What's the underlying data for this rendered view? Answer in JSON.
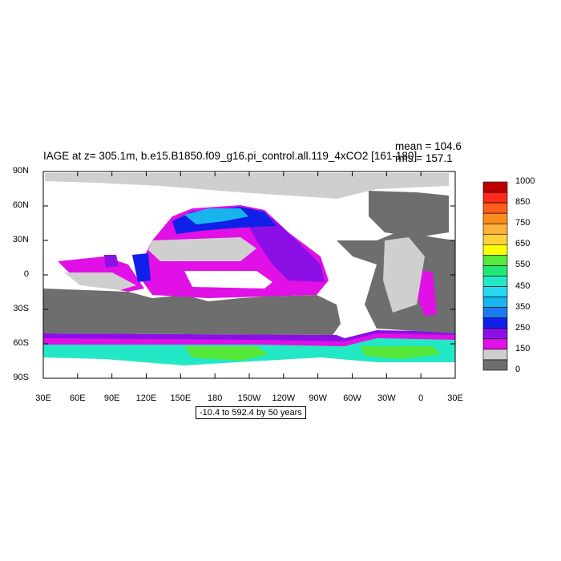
{
  "header": {
    "title": "IAGE at z= 305.1m, b.e15.B1850.f09_g16.pi_control.all.119_4xCO2 [161-180]",
    "mean": "mean = 104.6",
    "rms": "rms = 157.1"
  },
  "axes": {
    "lat_labels": [
      "90N",
      "60N",
      "30N",
      "0",
      "30S",
      "60S",
      "90S"
    ],
    "lon_labels": [
      "30E",
      "60E",
      "90E",
      "120E",
      "150E",
      "180",
      "150W",
      "120W",
      "90W",
      "60W",
      "30W",
      "0",
      "30E"
    ]
  },
  "colorbar": {
    "labels": [
      "1000",
      "850",
      "750",
      "650",
      "550",
      "450",
      "350",
      "250",
      "150",
      "0"
    ],
    "colors": [
      "#c00000",
      "#ff2a1a",
      "#ff5e1a",
      "#ff8c1e",
      "#ffb13a",
      "#ffd23a",
      "#ffff00",
      "#56e83a",
      "#23e873",
      "#23e8c6",
      "#23d8f0",
      "#18b4f0",
      "#1c7af0",
      "#1020e8",
      "#8c10e6",
      "#e010e6",
      "#cfcfcf",
      "#6e6e6e"
    ]
  },
  "footer": {
    "range": "-10.4 to 592.4 by 50 years"
  },
  "palette": {
    "land": "#6e6e6e",
    "low": "#cfcfcf",
    "magenta": "#e010e6",
    "purple": "#8c10e6",
    "blue": "#1020e8",
    "cyan": "#23e8c6",
    "green": "#23e873"
  }
}
